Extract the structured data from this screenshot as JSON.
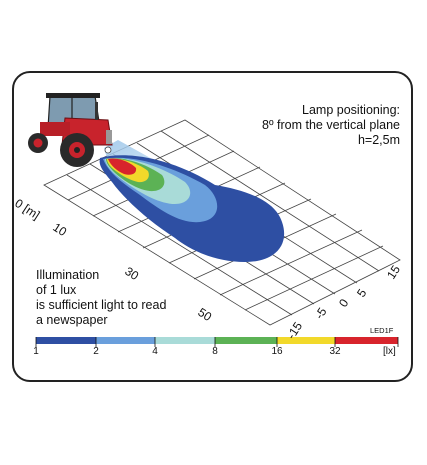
{
  "lamp_info": {
    "line1": "Lamp positioning:",
    "line2": "8º from the vertical plane",
    "line3": "h=2,5m"
  },
  "illumination_note": {
    "line1": "Illumination",
    "line2": "of 1 lux",
    "line3": "is sufficient light to read",
    "line4": "a newspaper"
  },
  "model_label": "LED1F",
  "distance_axis": {
    "labels": [
      "0 [m]",
      "10",
      "30",
      "50"
    ]
  },
  "lateral_axis": {
    "labels": [
      "15",
      "5",
      "0",
      "-5",
      "-15"
    ]
  },
  "color_scale": {
    "labels": [
      "1",
      "2",
      "4",
      "8",
      "16",
      "32"
    ],
    "unit": "[lx]",
    "colors": [
      "#2e4fa3",
      "#6a9fdc",
      "#a9dbd8",
      "#5cb255",
      "#f2d92a",
      "#d8242c"
    ]
  },
  "tractor": {
    "icon": "tractor-icon",
    "body_color": "#c8232c"
  }
}
